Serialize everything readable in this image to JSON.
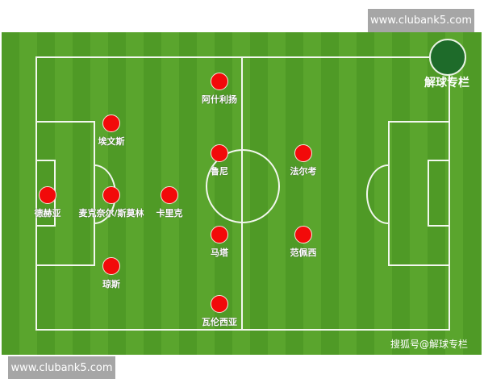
{
  "watermark_top": "www.clubank5.com",
  "watermark_bottom": "www.clubank5.com",
  "logo_text": "解球专栏",
  "credit": "搜狐号@解球专栏",
  "colors": {
    "pitch": "#5aa52d",
    "player": "#f20a0a",
    "lines": "#f2f7ee"
  },
  "players": [
    {
      "name": "阿什利扬"
    },
    {
      "name": "埃文斯"
    },
    {
      "name": "鲁尼"
    },
    {
      "name": "法尔考"
    },
    {
      "name": "德赫亚"
    },
    {
      "name": "麦克奈尔/斯莫林"
    },
    {
      "name": "卡里克"
    },
    {
      "name": "马塔"
    },
    {
      "name": "范佩西"
    },
    {
      "name": "琼斯"
    },
    {
      "name": "瓦伦西亚"
    }
  ]
}
